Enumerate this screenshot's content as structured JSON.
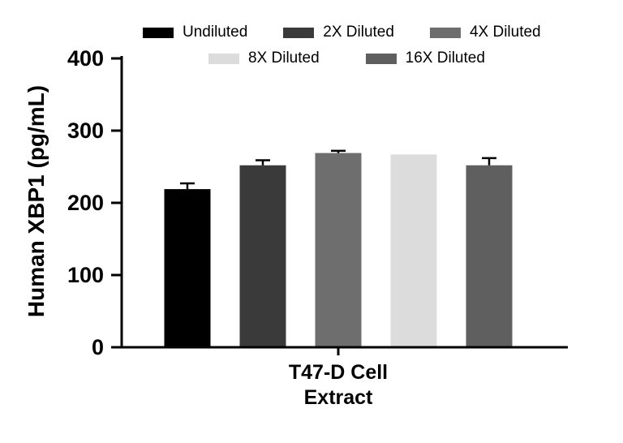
{
  "chart_data": {
    "type": "bar",
    "title": "",
    "ylabel": "Human XBP1 (pg/mL)",
    "xlabel": "",
    "categories": [
      "T47-D Cell Extract"
    ],
    "category_label_lines": [
      "T47-D Cell",
      "Extract"
    ],
    "ylim": [
      0,
      400
    ],
    "yticks": [
      0,
      100,
      200,
      300,
      400
    ],
    "grid": false,
    "legend_position": "top",
    "axis_color": "#000000",
    "series": [
      {
        "name": "Undiluted",
        "color": "#000000",
        "values": [
          219
        ],
        "errors": [
          8
        ]
      },
      {
        "name": "2X Diluted",
        "color": "#3a3a3a",
        "values": [
          252
        ],
        "errors": [
          7
        ]
      },
      {
        "name": "4X Diluted",
        "color": "#6e6e6e",
        "values": [
          269
        ],
        "errors": [
          3
        ]
      },
      {
        "name": "8X Diluted",
        "color": "#dcdcdc",
        "values": [
          267
        ],
        "errors": [
          0
        ]
      },
      {
        "name": "16X Diluted",
        "color": "#5f5f5f",
        "values": [
          252
        ],
        "errors": [
          10
        ]
      }
    ]
  }
}
